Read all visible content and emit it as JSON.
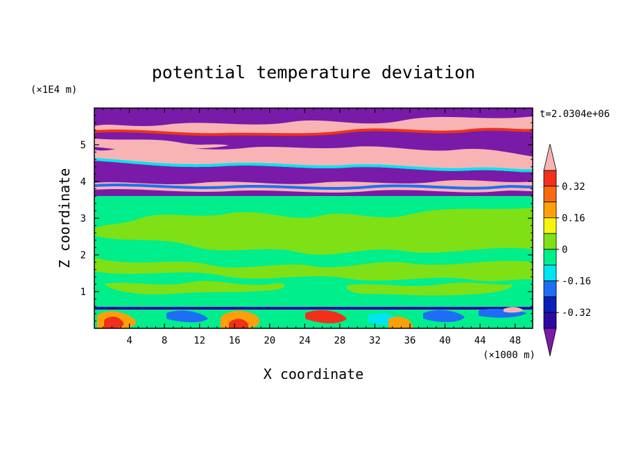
{
  "chart_data": {
    "type": "heatmap",
    "title": "potential temperature deviation",
    "xlabel": "X coordinate",
    "ylabel": "Z coordinate",
    "x_unit": "(×1000 m)",
    "y_unit": "(×1E4 m)",
    "time_label": "t=2.0304e+06",
    "xlim": [
      0,
      50
    ],
    "ylim": [
      0,
      6
    ],
    "x_ticks": [
      "4",
      "8",
      "12",
      "16",
      "20",
      "24",
      "28",
      "32",
      "36",
      "40",
      "44",
      "48"
    ],
    "y_ticks": [
      "1",
      "2",
      "3",
      "4",
      "5"
    ],
    "colorbar": {
      "tick_labels": [
        "0.32",
        "0.16",
        "0",
        "-0.16",
        "-0.32"
      ],
      "levels": [
        -0.4,
        -0.32,
        -0.24,
        -0.16,
        -0.08,
        0,
        0.08,
        0.16,
        0.24,
        0.32,
        0.4
      ],
      "colors": [
        "#6a0dad",
        "#2b0aa3",
        "#0a1fb8",
        "#1e6ef5",
        "#00e5f0",
        "#00ee8c",
        "#7fe016",
        "#f5f50a",
        "#fda008",
        "#f76b0f",
        "#f0301a",
        "#f8b4b4"
      ],
      "under_color": "#7a1aa8",
      "over_color": "#f8b4b4"
    },
    "regions": [
      {
        "name": "upper layer",
        "z_range": [
          3.6,
          6.0
        ],
        "dominant_values": [
          "> 0.4",
          "< -0.4"
        ]
      },
      {
        "name": "middle layer",
        "z_range": [
          0.6,
          3.6
        ],
        "dominant_values": [
          "-0.08 to 0.08"
        ]
      },
      {
        "name": "lower layer",
        "z_range": [
          0.0,
          0.6
        ],
        "dominant_values": [
          "-0.4 to 0.4"
        ]
      }
    ]
  }
}
